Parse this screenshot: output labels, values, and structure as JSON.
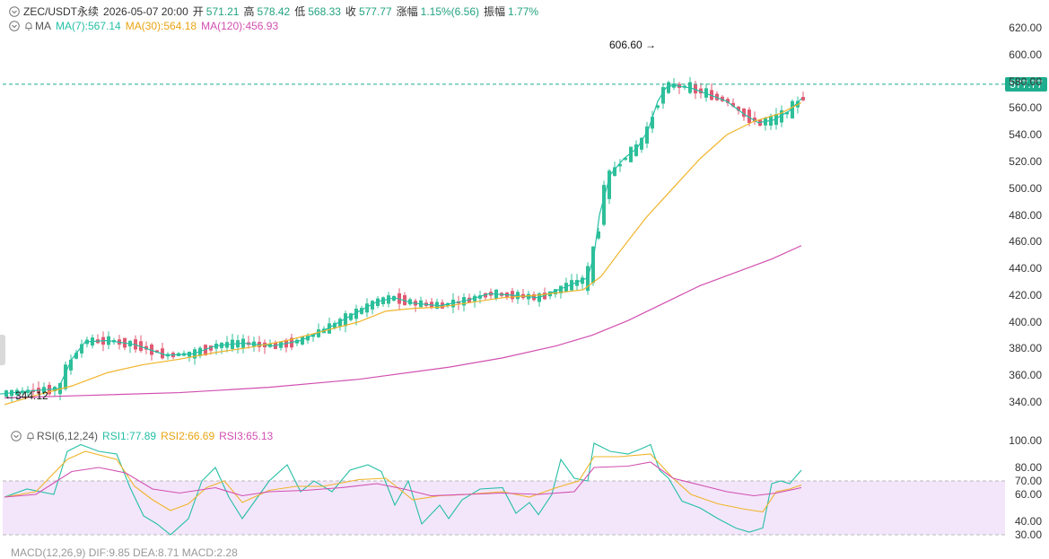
{
  "header": {
    "symbol": "ZEC/USDT永续",
    "datetime": "2026-05-07 20:00",
    "open_label": "开",
    "open": "571.21",
    "high_label": "高",
    "high": "578.42",
    "low_label": "低",
    "low": "568.33",
    "close_label": "收",
    "close": "577.77",
    "change_label": "涨幅",
    "change": "1.15%(6.56)",
    "amp_label": "振幅",
    "amp": "1.77%"
  },
  "ma_legend": {
    "title": "MA",
    "ma7": "MA(7):567.14",
    "ma30": "MA(30):564.18",
    "ma120": "MA(120):456.93"
  },
  "rsi_legend": {
    "title": "RSI(6,12,24)",
    "rsi1": "RSI1:77.89",
    "rsi2": "RSI2:66.69",
    "rsi3": "RSI3:65.13"
  },
  "macd_legend": {
    "text": "MACD(12,26,9)  DIF:9.85  DEA:8.71  MACD:2.28"
  },
  "price_tag": "577.77",
  "annotations": {
    "high_marker": "606.60",
    "low_marker": "344.12"
  },
  "colors": {
    "up": "#2fbf98",
    "down": "#e05a72",
    "ma7": "#25bfa5",
    "ma30": "#f0b429",
    "ma120": "#d24fb0"
  },
  "chart_data": [
    {
      "type": "candlestick",
      "title": "ZEC/USDT永续",
      "y_ticks": [
        "620.00",
        "600.00",
        "580.00",
        "560.00",
        "540.00",
        "520.00",
        "500.00",
        "480.00",
        "460.00",
        "440.00",
        "420.00",
        "400.00",
        "380.00",
        "360.00",
        "340.00"
      ],
      "ylim": [
        334,
        624
      ],
      "last_price": 577.77,
      "annotations": [
        {
          "label": "606.60",
          "value": 606.6
        },
        {
          "label": "344.12",
          "value": 344.12
        }
      ],
      "series": [
        {
          "name": "MA(7)",
          "values": [
            [
              0,
              346
            ],
            [
              30,
              348
            ],
            [
              65,
              350
            ],
            [
              80,
              372
            ],
            [
              95,
              385
            ],
            [
              120,
              386
            ],
            [
              150,
              383
            ],
            [
              185,
              375
            ],
            [
              215,
              376
            ],
            [
              240,
              382
            ],
            [
              270,
              384
            ],
            [
              305,
              382
            ],
            [
              335,
              386
            ],
            [
              365,
              395
            ],
            [
              395,
              406
            ],
            [
              420,
              415
            ],
            [
              440,
              418
            ],
            [
              460,
              414
            ],
            [
              490,
              412
            ],
            [
              520,
              416
            ],
            [
              545,
              421
            ],
            [
              570,
              420
            ],
            [
              600,
              418
            ],
            [
              630,
              426
            ],
            [
              655,
              433
            ],
            [
              662,
              450
            ],
            [
              668,
              480
            ],
            [
              680,
              510
            ],
            [
              695,
              522
            ],
            [
              710,
              530
            ],
            [
              722,
              543
            ],
            [
              733,
              565
            ],
            [
              742,
              575
            ],
            [
              750,
              577
            ],
            [
              770,
              575
            ],
            [
              790,
              570
            ],
            [
              810,
              565
            ],
            [
              830,
              555
            ],
            [
              845,
              549
            ],
            [
              862,
              551
            ],
            [
              880,
              558
            ],
            [
              893,
              567
            ]
          ]
        },
        {
          "name": "MA(30)",
          "values": [
            [
              5,
              338
            ],
            [
              40,
              345
            ],
            [
              80,
              352
            ],
            [
              120,
              362
            ],
            [
              160,
              368
            ],
            [
              200,
              372
            ],
            [
              240,
              377
            ],
            [
              280,
              381
            ],
            [
              320,
              386
            ],
            [
              360,
              393
            ],
            [
              400,
              400
            ],
            [
              430,
              408
            ],
            [
              460,
              410
            ],
            [
              490,
              411
            ],
            [
              520,
              414
            ],
            [
              560,
              418
            ],
            [
              600,
              420
            ],
            [
              650,
              424
            ],
            [
              670,
              434
            ],
            [
              690,
              452
            ],
            [
              720,
              478
            ],
            [
              750,
              500
            ],
            [
              780,
              522
            ],
            [
              810,
              540
            ],
            [
              840,
              550
            ],
            [
              870,
              556
            ],
            [
              893,
              564
            ]
          ]
        },
        {
          "name": "MA(120)",
          "values": [
            [
              5,
              343
            ],
            [
              100,
              345
            ],
            [
              200,
              347
            ],
            [
              300,
              351
            ],
            [
              400,
              357
            ],
            [
              500,
              366
            ],
            [
              560,
              373
            ],
            [
              620,
              382
            ],
            [
              660,
              390
            ],
            [
              700,
              401
            ],
            [
              740,
              414
            ],
            [
              780,
              427
            ],
            [
              820,
              437
            ],
            [
              860,
              447
            ],
            [
              893,
              457
            ]
          ]
        }
      ]
    },
    {
      "type": "line",
      "title": "RSI(6,12,24)",
      "y_ticks": [
        "100.00",
        "80.00",
        "70.00",
        "60.00",
        "40.00",
        "30.00"
      ],
      "ylim": [
        30,
        100
      ],
      "band": [
        30,
        70
      ],
      "series": [
        {
          "name": "RSI1",
          "values": [
            [
              5,
              58
            ],
            [
              30,
              64
            ],
            [
              60,
              60
            ],
            [
              75,
              92
            ],
            [
              90,
              97
            ],
            [
              110,
              92
            ],
            [
              130,
              90
            ],
            [
              145,
              65
            ],
            [
              160,
              44
            ],
            [
              175,
              38
            ],
            [
              190,
              30
            ],
            [
              210,
              42
            ],
            [
              225,
              70
            ],
            [
              240,
              80
            ],
            [
              255,
              58
            ],
            [
              270,
              42
            ],
            [
              285,
              56
            ],
            [
              300,
              70
            ],
            [
              320,
              82
            ],
            [
              335,
              62
            ],
            [
              350,
              70
            ],
            [
              370,
              62
            ],
            [
              390,
              78
            ],
            [
              410,
              82
            ],
            [
              425,
              77
            ],
            [
              440,
              52
            ],
            [
              455,
              70
            ],
            [
              470,
              38
            ],
            [
              490,
              52
            ],
            [
              500,
              42
            ],
            [
              515,
              56
            ],
            [
              535,
              64
            ],
            [
              560,
              65
            ],
            [
              575,
              46
            ],
            [
              590,
              54
            ],
            [
              600,
              45
            ],
            [
              615,
              60
            ],
            [
              625,
              86
            ],
            [
              640,
              72
            ],
            [
              655,
              70
            ],
            [
              662,
              98
            ],
            [
              680,
              92
            ],
            [
              700,
              90
            ],
            [
              715,
              94
            ],
            [
              725,
              97
            ],
            [
              735,
              78
            ],
            [
              745,
              72
            ],
            [
              760,
              55
            ],
            [
              780,
              50
            ],
            [
              800,
              42
            ],
            [
              820,
              35
            ],
            [
              835,
              32
            ],
            [
              850,
              35
            ],
            [
              860,
              68
            ],
            [
              870,
              70
            ],
            [
              880,
              68
            ],
            [
              893,
              78
            ]
          ]
        },
        {
          "name": "RSI2",
          "values": [
            [
              5,
              58
            ],
            [
              40,
              62
            ],
            [
              75,
              86
            ],
            [
              95,
              92
            ],
            [
              130,
              86
            ],
            [
              150,
              66
            ],
            [
              170,
              56
            ],
            [
              190,
              48
            ],
            [
              210,
              53
            ],
            [
              230,
              65
            ],
            [
              250,
              70
            ],
            [
              270,
              54
            ],
            [
              300,
              63
            ],
            [
              330,
              66
            ],
            [
              360,
              66
            ],
            [
              400,
              71
            ],
            [
              430,
              72
            ],
            [
              460,
              56
            ],
            [
              490,
              59
            ],
            [
              520,
              60
            ],
            [
              560,
              62
            ],
            [
              590,
              58
            ],
            [
              620,
              65
            ],
            [
              645,
              70
            ],
            [
              662,
              88
            ],
            [
              690,
              88
            ],
            [
              725,
              90
            ],
            [
              750,
              72
            ],
            [
              770,
              60
            ],
            [
              800,
              53
            ],
            [
              830,
              49
            ],
            [
              850,
              47
            ],
            [
              865,
              62
            ],
            [
              880,
              64
            ],
            [
              893,
              67
            ]
          ]
        },
        {
          "name": "RSI3",
          "values": [
            [
              5,
              58
            ],
            [
              40,
              60
            ],
            [
              80,
              77
            ],
            [
              110,
              80
            ],
            [
              140,
              76
            ],
            [
              170,
              64
            ],
            [
              200,
              61
            ],
            [
              240,
              65
            ],
            [
              270,
              59
            ],
            [
              300,
              62
            ],
            [
              340,
              63
            ],
            [
              380,
              65
            ],
            [
              420,
              68
            ],
            [
              450,
              64
            ],
            [
              480,
              59
            ],
            [
              520,
              60
            ],
            [
              560,
              61
            ],
            [
              600,
              60
            ],
            [
              640,
              62
            ],
            [
              662,
              80
            ],
            [
              700,
              81
            ],
            [
              725,
              84
            ],
            [
              750,
              72
            ],
            [
              780,
              67
            ],
            [
              810,
              62
            ],
            [
              840,
              59
            ],
            [
              865,
              61
            ],
            [
              893,
              65
            ]
          ]
        }
      ]
    }
  ]
}
